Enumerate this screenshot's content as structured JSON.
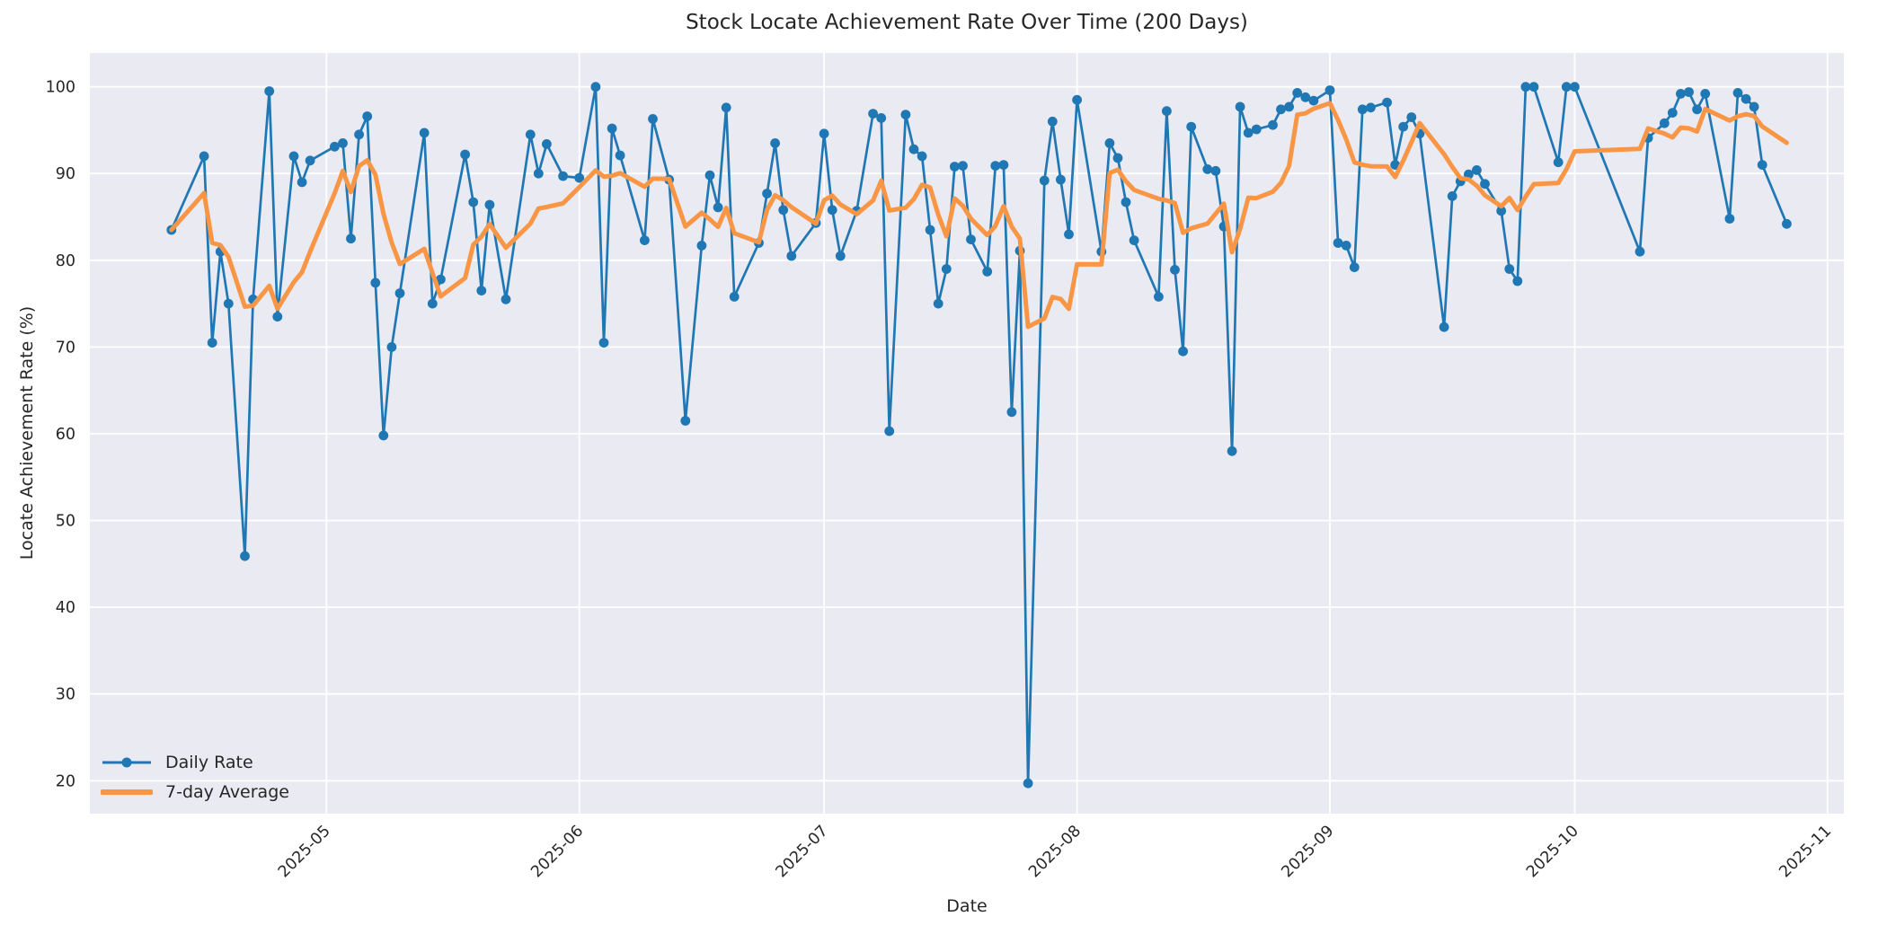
{
  "figure": {
    "title": "Stock Locate Achievement Rate Over Time (200 Days)",
    "xlabel": "Date",
    "ylabel": "Locate Achievement Rate (%)"
  },
  "legend": {
    "items": [
      {
        "label": "Daily Rate",
        "swatch": "line-with-marker-icon",
        "color": "#1f77b4"
      },
      {
        "label": "7-day Average",
        "swatch": "thick-line-icon",
        "color": "#f89646"
      }
    ]
  },
  "colors": {
    "daily_rate": "#1f77b4",
    "seven_day_average": "#f89646",
    "axes_background": "#eaeaf2",
    "grid": "#ffffff",
    "text": "#262626",
    "figure_background": "#ffffff"
  },
  "chart_data": {
    "type": "line",
    "title": "Stock Locate Achievement Rate Over Time (200 Days)",
    "xlabel": "Date",
    "ylabel": "Locate Achievement Rate (%)",
    "grid": true,
    "legend_position": "lower left",
    "x_tick_labels": [
      "2025-05",
      "2025-06",
      "2025-07",
      "2025-08",
      "2025-09",
      "2025-10",
      "2025-11"
    ],
    "y_ticks": [
      20,
      30,
      40,
      50,
      60,
      70,
      80,
      90,
      100
    ],
    "xlim": [
      "2025-04-02",
      "2025-11-03"
    ],
    "ylim": [
      16.2,
      103.9
    ],
    "series": [
      {
        "name": "Daily Rate",
        "color": "#1f77b4",
        "marker": "circle",
        "points": [
          [
            "2025-04-12",
            83.5
          ],
          [
            "2025-04-16",
            92.0
          ],
          [
            "2025-04-17",
            70.5
          ],
          [
            "2025-04-18",
            81.0
          ],
          [
            "2025-04-19",
            75.0
          ],
          [
            "2025-04-21",
            45.9
          ],
          [
            "2025-04-22",
            75.5
          ],
          [
            "2025-04-24",
            99.5
          ],
          [
            "2025-04-25",
            73.5
          ],
          [
            "2025-04-27",
            92.0
          ],
          [
            "2025-04-28",
            89.0
          ],
          [
            "2025-04-29",
            91.5
          ],
          [
            "2025-05-02",
            93.1
          ],
          [
            "2025-05-03",
            93.5
          ],
          [
            "2025-05-04",
            82.5
          ],
          [
            "2025-05-05",
            94.5
          ],
          [
            "2025-05-06",
            96.6
          ],
          [
            "2025-05-07",
            77.4
          ],
          [
            "2025-05-08",
            59.8
          ],
          [
            "2025-05-09",
            70.0
          ],
          [
            "2025-05-10",
            76.2
          ],
          [
            "2025-05-13",
            94.7
          ],
          [
            "2025-05-14",
            75.0
          ],
          [
            "2025-05-15",
            77.8
          ],
          [
            "2025-05-18",
            92.2
          ],
          [
            "2025-05-19",
            86.7
          ],
          [
            "2025-05-20",
            76.5
          ],
          [
            "2025-05-21",
            86.4
          ],
          [
            "2025-05-23",
            75.5
          ],
          [
            "2025-05-26",
            94.5
          ],
          [
            "2025-05-27",
            90.0
          ],
          [
            "2025-05-28",
            93.4
          ],
          [
            "2025-05-30",
            89.7
          ],
          [
            "2025-06-01",
            89.5
          ],
          [
            "2025-06-03",
            100.0
          ],
          [
            "2025-06-04",
            70.5
          ],
          [
            "2025-06-05",
            95.2
          ],
          [
            "2025-06-06",
            92.1
          ],
          [
            "2025-06-09",
            82.3
          ],
          [
            "2025-06-10",
            96.3
          ],
          [
            "2025-06-12",
            89.3
          ],
          [
            "2025-06-14",
            61.5
          ],
          [
            "2025-06-16",
            81.7
          ],
          [
            "2025-06-17",
            89.8
          ],
          [
            "2025-06-18",
            86.1
          ],
          [
            "2025-06-19",
            97.6
          ],
          [
            "2025-06-20",
            75.8
          ],
          [
            "2025-06-23",
            82.0
          ],
          [
            "2025-06-24",
            87.7
          ],
          [
            "2025-06-25",
            93.5
          ],
          [
            "2025-06-26",
            85.8
          ],
          [
            "2025-06-27",
            80.5
          ],
          [
            "2025-06-30",
            84.3
          ],
          [
            "2025-07-01",
            94.6
          ],
          [
            "2025-07-02",
            85.8
          ],
          [
            "2025-07-03",
            80.5
          ],
          [
            "2025-07-05",
            85.7
          ],
          [
            "2025-07-07",
            96.9
          ],
          [
            "2025-07-08",
            96.4
          ],
          [
            "2025-07-09",
            60.3
          ],
          [
            "2025-07-11",
            96.8
          ],
          [
            "2025-07-12",
            92.8
          ],
          [
            "2025-07-13",
            92.0
          ],
          [
            "2025-07-14",
            83.5
          ],
          [
            "2025-07-15",
            75.0
          ],
          [
            "2025-07-16",
            79.0
          ],
          [
            "2025-07-17",
            90.8
          ],
          [
            "2025-07-18",
            90.9
          ],
          [
            "2025-07-19",
            82.4
          ],
          [
            "2025-07-21",
            78.7
          ],
          [
            "2025-07-22",
            90.9
          ],
          [
            "2025-07-23",
            91.0
          ],
          [
            "2025-07-24",
            62.5
          ],
          [
            "2025-07-25",
            81.1
          ],
          [
            "2025-07-26",
            19.7
          ],
          [
            "2025-07-28",
            89.2
          ],
          [
            "2025-07-29",
            96.0
          ],
          [
            "2025-07-30",
            89.3
          ],
          [
            "2025-07-31",
            83.0
          ],
          [
            "2025-08-01",
            98.5
          ],
          [
            "2025-08-04",
            81.0
          ],
          [
            "2025-08-05",
            93.5
          ],
          [
            "2025-08-06",
            91.8
          ],
          [
            "2025-08-07",
            86.7
          ],
          [
            "2025-08-08",
            82.3
          ],
          [
            "2025-08-11",
            75.8
          ],
          [
            "2025-08-12",
            97.2
          ],
          [
            "2025-08-13",
            78.9
          ],
          [
            "2025-08-14",
            69.5
          ],
          [
            "2025-08-15",
            95.4
          ],
          [
            "2025-08-17",
            90.5
          ],
          [
            "2025-08-18",
            90.3
          ],
          [
            "2025-08-19",
            83.9
          ],
          [
            "2025-08-20",
            58.0
          ],
          [
            "2025-08-21",
            97.7
          ],
          [
            "2025-08-22",
            94.7
          ],
          [
            "2025-08-23",
            95.1
          ],
          [
            "2025-08-25",
            95.6
          ],
          [
            "2025-08-26",
            97.4
          ],
          [
            "2025-08-27",
            97.7
          ],
          [
            "2025-08-28",
            99.3
          ],
          [
            "2025-08-29",
            98.8
          ],
          [
            "2025-08-30",
            98.4
          ],
          [
            "2025-09-01",
            99.6
          ],
          [
            "2025-09-02",
            82.0
          ],
          [
            "2025-09-03",
            81.7
          ],
          [
            "2025-09-04",
            79.2
          ],
          [
            "2025-09-05",
            97.4
          ],
          [
            "2025-09-06",
            97.6
          ],
          [
            "2025-09-08",
            98.2
          ],
          [
            "2025-09-09",
            91.0
          ],
          [
            "2025-09-10",
            95.4
          ],
          [
            "2025-09-11",
            96.5
          ],
          [
            "2025-09-12",
            94.6
          ],
          [
            "2025-09-15",
            72.3
          ],
          [
            "2025-09-16",
            87.4
          ],
          [
            "2025-09-17",
            89.1
          ],
          [
            "2025-09-18",
            89.9
          ],
          [
            "2025-09-19",
            90.4
          ],
          [
            "2025-09-20",
            88.8
          ],
          [
            "2025-09-22",
            85.7
          ],
          [
            "2025-09-23",
            79.0
          ],
          [
            "2025-09-24",
            77.6
          ],
          [
            "2025-09-25",
            100.0
          ],
          [
            "2025-09-26",
            100.0
          ],
          [
            "2025-09-29",
            91.3
          ],
          [
            "2025-09-30",
            100.0
          ],
          [
            "2025-10-01",
            100.0
          ],
          [
            "2025-10-09",
            81.0
          ],
          [
            "2025-10-10",
            94.1
          ],
          [
            "2025-10-12",
            95.8
          ],
          [
            "2025-10-13",
            97.0
          ],
          [
            "2025-10-14",
            99.2
          ],
          [
            "2025-10-15",
            99.4
          ],
          [
            "2025-10-16",
            97.4
          ],
          [
            "2025-10-17",
            99.2
          ],
          [
            "2025-10-20",
            84.8
          ],
          [
            "2025-10-21",
            99.3
          ],
          [
            "2025-10-22",
            98.6
          ],
          [
            "2025-10-23",
            97.7
          ],
          [
            "2025-10-24",
            91.0
          ],
          [
            "2025-10-27",
            84.2
          ]
        ]
      },
      {
        "name": "7-day Average",
        "color": "#f89646",
        "marker": "none",
        "derived": "rolling mean of trailing 7 Daily Rate points (min_periods=1)"
      }
    ]
  }
}
